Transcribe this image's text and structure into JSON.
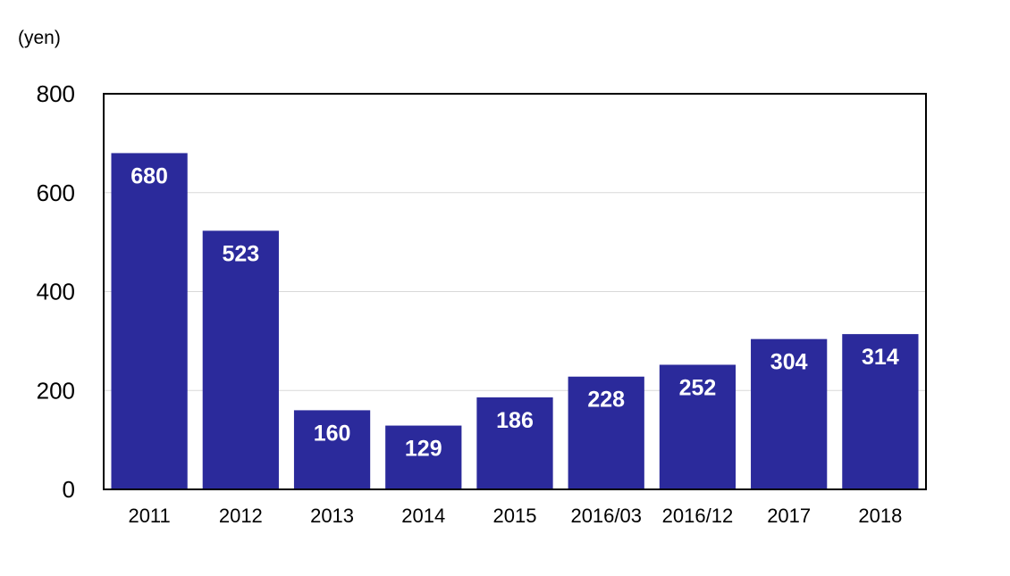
{
  "chart_data": {
    "type": "bar",
    "ylabel": "(yen)",
    "categories": [
      "2011",
      "2012",
      "2013",
      "2014",
      "2015",
      "2016/03",
      "2016/12",
      "2017",
      "2018"
    ],
    "values": [
      680,
      523,
      160,
      129,
      186,
      228,
      252,
      304,
      314
    ],
    "ylim": [
      0,
      800
    ],
    "yticks": [
      0,
      200,
      400,
      600,
      800
    ],
    "grid": true,
    "bar_color": "#2b2a9b",
    "data_label_color": "#ffffff"
  }
}
